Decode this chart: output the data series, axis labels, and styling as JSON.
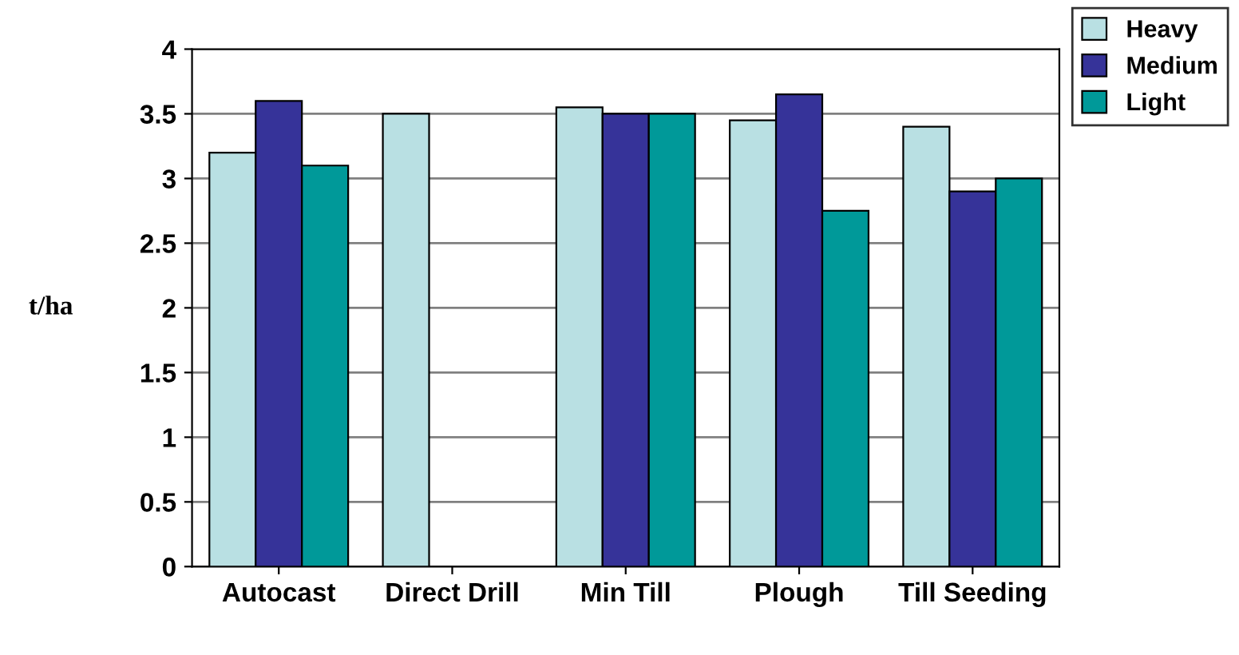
{
  "chart_data": {
    "type": "bar",
    "ylabel": "t/ha",
    "categories": [
      "Autocast",
      "Direct Drill",
      "Min Till",
      "Plough",
      "Till Seeding"
    ],
    "series": [
      {
        "name": "Heavy",
        "color": "#b9e0e3",
        "values": [
          3.2,
          3.5,
          3.55,
          3.45,
          3.4
        ]
      },
      {
        "name": "Medium",
        "color": "#363399",
        "values": [
          3.6,
          null,
          3.5,
          3.65,
          2.9
        ]
      },
      {
        "name": "Light",
        "color": "#009999",
        "values": [
          3.1,
          null,
          3.5,
          2.75,
          3.0
        ]
      }
    ],
    "ylim": [
      0,
      4
    ],
    "yticks": [
      0,
      0.5,
      1,
      1.5,
      2,
      2.5,
      3,
      3.5,
      4
    ],
    "grid": "y",
    "legend": "top right"
  }
}
